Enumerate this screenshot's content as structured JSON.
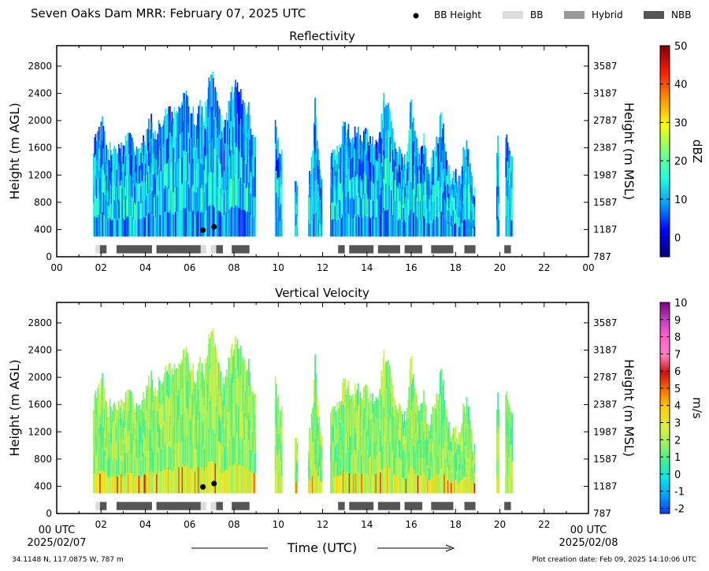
{
  "header": {
    "title": "Seven Oaks Dam MRR:  February 07, 2025 UTC",
    "legend": [
      {
        "label": "BB Height",
        "kind": "dot",
        "color": "#000000"
      },
      {
        "label": "BB",
        "kind": "box",
        "color": "#dcdcdc"
      },
      {
        "label": "Hybrid",
        "kind": "box",
        "color": "#999999"
      },
      {
        "label": "NBB",
        "kind": "box",
        "color": "#555555"
      }
    ]
  },
  "footer": {
    "location": "34.1148 N, 117.0875 W, 787 m",
    "creation": "Plot creation date: Feb 09, 2025 14:10:06 UTC",
    "xlabel": "Time (UTC)",
    "start_tick": [
      "00 UTC",
      "2025/02/07"
    ],
    "end_tick": [
      "00 UTC",
      "2025/02/08"
    ]
  },
  "chart_data": [
    {
      "type": "heatmap",
      "title": "Reflectivity",
      "ylabel": "Height (m AGL)",
      "ylabel_right": "Height (m MSL)",
      "colorbar_label": "dBZ",
      "xlim": [
        0,
        24
      ],
      "ylim": [
        0,
        3100
      ],
      "xticks": [
        "00",
        "02",
        "04",
        "06",
        "08",
        "10",
        "12",
        "14",
        "16",
        "18",
        "20",
        "22",
        "00"
      ],
      "yticks": [
        0,
        400,
        800,
        1200,
        1600,
        2000,
        2400,
        2800
      ],
      "yticks_right": [
        787,
        1187,
        1587,
        1987,
        2387,
        2787,
        3187,
        3587
      ],
      "colorbar": {
        "min": -5,
        "max": 50,
        "ticks": [
          0,
          10,
          20,
          30,
          40,
          50
        ],
        "colors": [
          "#00007f",
          "#0000ff",
          "#00a0ff",
          "#22ffdd",
          "#7dff7a",
          "#ffff00",
          "#ff9000",
          "#ff1a00",
          "#7f0000"
        ]
      },
      "echo_tops": [
        {
          "x": 1.7,
          "top": 1650
        },
        {
          "x": 1.9,
          "top": 1750
        },
        {
          "x": 2.1,
          "top": 1950
        },
        {
          "x": 2.3,
          "top": 1500
        },
        {
          "x": 2.5,
          "top": 1600
        },
        {
          "x": 2.7,
          "top": 1650
        },
        {
          "x": 2.9,
          "top": 1550
        },
        {
          "x": 3.1,
          "top": 1600
        },
        {
          "x": 3.3,
          "top": 1850
        },
        {
          "x": 3.5,
          "top": 1650
        },
        {
          "x": 3.7,
          "top": 1550
        },
        {
          "x": 3.9,
          "top": 1600
        },
        {
          "x": 4.1,
          "top": 1850
        },
        {
          "x": 4.3,
          "top": 2000
        },
        {
          "x": 4.5,
          "top": 1750
        },
        {
          "x": 4.7,
          "top": 1950
        },
        {
          "x": 4.9,
          "top": 2100
        },
        {
          "x": 5.1,
          "top": 2150
        },
        {
          "x": 5.3,
          "top": 2050
        },
        {
          "x": 5.5,
          "top": 2200
        },
        {
          "x": 5.7,
          "top": 2300
        },
        {
          "x": 5.9,
          "top": 2350
        },
        {
          "x": 6.1,
          "top": 2150
        },
        {
          "x": 6.3,
          "top": 2000
        },
        {
          "x": 6.5,
          "top": 2250
        },
        {
          "x": 6.7,
          "top": 2050
        },
        {
          "x": 6.9,
          "top": 2600
        },
        {
          "x": 7.1,
          "top": 2650
        },
        {
          "x": 7.3,
          "top": 2250
        },
        {
          "x": 7.5,
          "top": 1850
        },
        {
          "x": 7.7,
          "top": 2050
        },
        {
          "x": 7.9,
          "top": 2350
        },
        {
          "x": 8.1,
          "top": 2550
        },
        {
          "x": 8.3,
          "top": 2450
        },
        {
          "x": 8.5,
          "top": 2200
        },
        {
          "x": 8.7,
          "top": 2150
        },
        {
          "x": 8.9,
          "top": 1750
        },
        {
          "x": 9.9,
          "top": 2000
        },
        {
          "x": 10.1,
          "top": 1500
        },
        {
          "x": 10.8,
          "top": 1000
        },
        {
          "x": 11.4,
          "top": 1000
        },
        {
          "x": 11.6,
          "top": 1650
        },
        {
          "x": 11.7,
          "top": 2300
        },
        {
          "x": 11.9,
          "top": 1250
        },
        {
          "x": 12.4,
          "top": 1600
        },
        {
          "x": 12.6,
          "top": 1500
        },
        {
          "x": 12.8,
          "top": 1650
        },
        {
          "x": 13.0,
          "top": 1900
        },
        {
          "x": 13.2,
          "top": 1850
        },
        {
          "x": 13.4,
          "top": 1700
        },
        {
          "x": 13.6,
          "top": 1900
        },
        {
          "x": 13.8,
          "top": 1650
        },
        {
          "x": 14.0,
          "top": 1850
        },
        {
          "x": 14.2,
          "top": 1700
        },
        {
          "x": 14.4,
          "top": 1650
        },
        {
          "x": 14.6,
          "top": 1800
        },
        {
          "x": 14.8,
          "top": 2300
        },
        {
          "x": 15.0,
          "top": 2250
        },
        {
          "x": 15.2,
          "top": 1850
        },
        {
          "x": 15.4,
          "top": 1500
        },
        {
          "x": 15.6,
          "top": 1600
        },
        {
          "x": 15.8,
          "top": 1300
        },
        {
          "x": 16.0,
          "top": 2300
        },
        {
          "x": 16.2,
          "top": 1850
        },
        {
          "x": 16.4,
          "top": 1500
        },
        {
          "x": 16.6,
          "top": 1700
        },
        {
          "x": 16.8,
          "top": 1250
        },
        {
          "x": 17.0,
          "top": 1450
        },
        {
          "x": 17.2,
          "top": 1700
        },
        {
          "x": 17.4,
          "top": 2100
        },
        {
          "x": 17.6,
          "top": 1600
        },
        {
          "x": 17.8,
          "top": 1050
        },
        {
          "x": 18.0,
          "top": 1200
        },
        {
          "x": 18.2,
          "top": 1050
        },
        {
          "x": 18.4,
          "top": 1550
        },
        {
          "x": 18.6,
          "top": 1600
        },
        {
          "x": 18.8,
          "top": 1000
        },
        {
          "x": 19.9,
          "top": 1650
        },
        {
          "x": 20.3,
          "top": 1700
        },
        {
          "x": 20.5,
          "top": 1600
        }
      ],
      "bb_points": [
        {
          "x": 6.6,
          "height": 390
        },
        {
          "x": 7.1,
          "height": 440
        }
      ],
      "bb_segments": [
        {
          "start": 1.75,
          "end": 1.95,
          "class": "BB"
        },
        {
          "start": 1.95,
          "end": 2.25,
          "class": "NBB"
        },
        {
          "start": 2.7,
          "end": 4.3,
          "class": "NBB"
        },
        {
          "start": 4.5,
          "end": 6.5,
          "class": "NBB"
        },
        {
          "start": 6.5,
          "end": 6.75,
          "class": "BB"
        },
        {
          "start": 6.95,
          "end": 7.2,
          "class": "BB"
        },
        {
          "start": 7.2,
          "end": 7.5,
          "class": "NBB"
        },
        {
          "start": 7.9,
          "end": 8.7,
          "class": "NBB"
        },
        {
          "start": 12.7,
          "end": 13.0,
          "class": "NBB"
        },
        {
          "start": 13.2,
          "end": 14.3,
          "class": "NBB"
        },
        {
          "start": 14.5,
          "end": 15.5,
          "class": "NBB"
        },
        {
          "start": 15.7,
          "end": 16.5,
          "class": "NBB"
        },
        {
          "start": 16.9,
          "end": 17.9,
          "class": "NBB"
        },
        {
          "start": 18.4,
          "end": 18.9,
          "class": "NBB"
        },
        {
          "start": 20.2,
          "end": 20.5,
          "class": "NBB"
        }
      ]
    },
    {
      "type": "heatmap",
      "title": "Vertical Velocity",
      "ylabel": "Height (m AGL)",
      "ylabel_right": "Height (m MSL)",
      "colorbar_label": "m/s",
      "xlim": [
        0,
        24
      ],
      "ylim": [
        0,
        3100
      ],
      "xticks": [
        "",
        "02",
        "04",
        "06",
        "08",
        "10",
        "12",
        "14",
        "16",
        "18",
        "20",
        "22",
        ""
      ],
      "yticks": [
        0,
        400,
        800,
        1200,
        1600,
        2000,
        2400,
        2800
      ],
      "yticks_right": [
        787,
        1187,
        1587,
        1987,
        2387,
        2787,
        3187,
        3587
      ],
      "colorbar": {
        "min": -2.3,
        "max": 10,
        "ticks": [
          -2,
          -1,
          0,
          1,
          2,
          3,
          4,
          5,
          6,
          7,
          8,
          9,
          10
        ],
        "colors": [
          "#0040ff",
          "#00a0ff",
          "#00e8e8",
          "#40f090",
          "#a0f060",
          "#e0f040",
          "#ffd000",
          "#ff7000",
          "#d01010",
          "#ff80c0",
          "#ff60d0",
          "#c040c0",
          "#800080"
        ]
      },
      "bb_points": [
        {
          "x": 6.6,
          "height": 390
        },
        {
          "x": 7.1,
          "height": 440
        }
      ]
    }
  ]
}
